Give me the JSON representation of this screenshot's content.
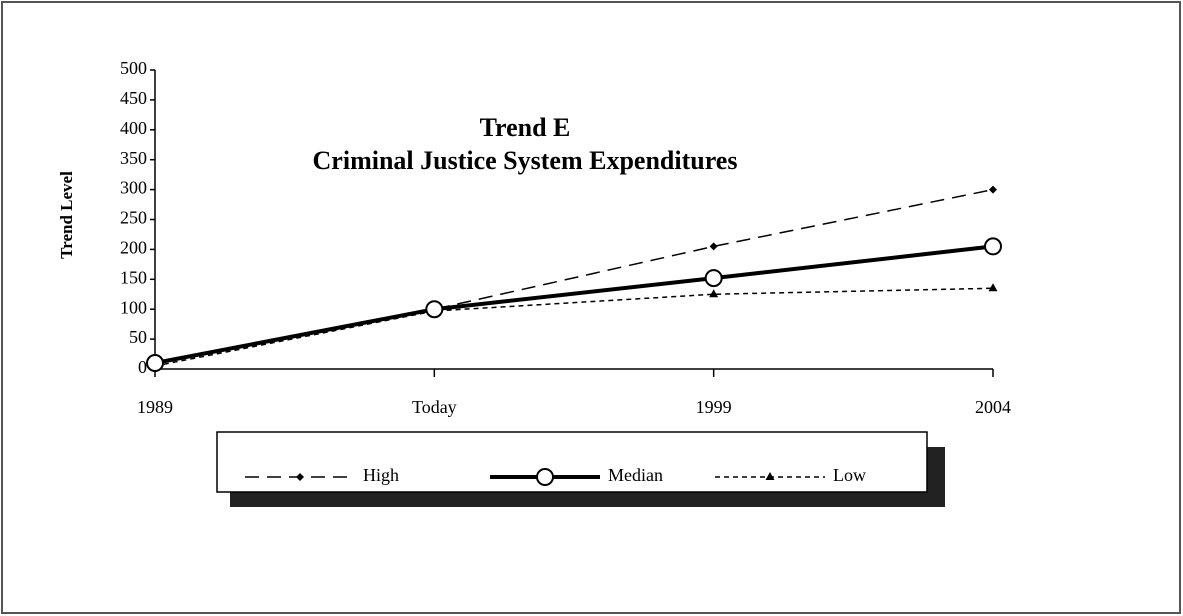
{
  "chart_data": {
    "type": "line",
    "title": "Trend E",
    "subtitle": "Criminal Justice System Expenditures",
    "y_label": "Trend Level",
    "categories": [
      "1989",
      "Today",
      "1999",
      "2004"
    ],
    "series": [
      {
        "name": "High",
        "color": "#000000",
        "style": "dashed",
        "marker": "diamond",
        "values": [
          10,
          100,
          205,
          300
        ]
      },
      {
        "name": "Median",
        "color": "#000000",
        "style": "solid",
        "marker": "circle",
        "values": [
          10,
          100,
          152,
          205
        ]
      },
      {
        "name": "Low",
        "color": "#000000",
        "style": "dotted",
        "marker": "triangle",
        "values": [
          5,
          97,
          125,
          135
        ]
      }
    ],
    "ylim": [
      0,
      500
    ],
    "yticks": [
      0,
      50,
      100,
      150,
      200,
      250,
      300,
      350,
      400,
      450,
      500
    ],
    "grid": false
  }
}
